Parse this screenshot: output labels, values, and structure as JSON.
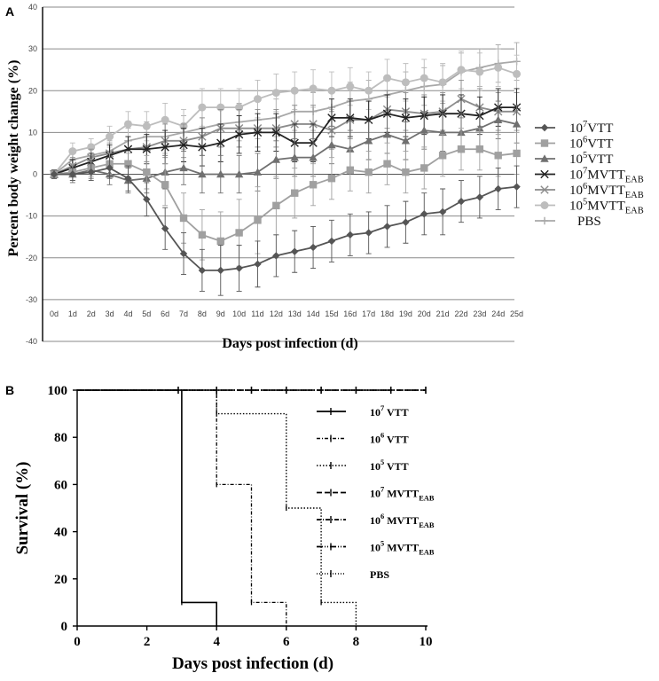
{
  "chart_data": [
    {
      "panel": "A",
      "type": "line",
      "xlabel": "Days post infection (d)",
      "ylabel": "Percent body weight change (%)",
      "ylim": [
        -40,
        40
      ],
      "yticks": [
        -40,
        -30,
        -20,
        -10,
        0,
        10,
        20,
        30,
        40
      ],
      "categories": [
        "0d",
        "1d",
        "2d",
        "3d",
        "4d",
        "5d",
        "6d",
        "7d",
        "8d",
        "9d",
        "10d",
        "11d",
        "12d",
        "13d",
        "14d",
        "15d",
        "16d",
        "17d",
        "18d",
        "19d",
        "20d",
        "21d",
        "22d",
        "23d",
        "24d",
        "25d"
      ],
      "series": [
        {
          "name": "10⁷VTT",
          "base": "10",
          "exp": "7",
          "main": "VTT",
          "sub": "",
          "color": "#555555",
          "marker": "diamond",
          "values": [
            0,
            0,
            0.5,
            1.5,
            -1,
            -6,
            -13,
            -19,
            -23,
            -23,
            -22.5,
            -21.5,
            -19.5,
            -18.5,
            -17.5,
            -16,
            -14.5,
            -14,
            -12.5,
            -11.5,
            -9.5,
            -9,
            -6.5,
            -5.5,
            -3.5,
            -3
          ],
          "err": [
            1,
            1.5,
            2,
            2.5,
            3,
            4,
            5,
            5,
            5,
            6,
            5.5,
            5.5,
            5,
            5,
            5,
            5,
            5,
            5,
            5,
            5,
            5,
            5.5,
            5,
            5,
            5,
            5
          ]
        },
        {
          "name": "10⁶VTT",
          "base": "10",
          "exp": "6",
          "main": "VTT",
          "sub": "",
          "color": "#a0a0a0",
          "marker": "square",
          "values": [
            0,
            0.5,
            1.5,
            2.5,
            2.5,
            0.5,
            -2.5,
            -10.5,
            -14.5,
            -16,
            -14,
            -11,
            -7.5,
            -4.5,
            -2.5,
            -1,
            1,
            0.5,
            2.5,
            0.5,
            1.5,
            4.5,
            6,
            6,
            4.5,
            5
          ],
          "err": [
            1,
            2,
            2,
            2.5,
            3,
            4,
            5,
            6,
            6,
            7,
            8,
            8,
            7,
            6,
            5,
            5,
            5,
            5,
            5,
            5,
            5,
            5,
            5,
            5,
            5,
            5
          ]
        },
        {
          "name": "10⁵VTT",
          "base": "10",
          "exp": "5",
          "main": "VTT",
          "sub": "",
          "color": "#707070",
          "marker": "triangle",
          "values": [
            0,
            0,
            1,
            0,
            -1.5,
            -1,
            0.5,
            1.5,
            0,
            0,
            0,
            0.5,
            3.5,
            4,
            4,
            7,
            6,
            8,
            9.5,
            8,
            10.5,
            10,
            10,
            11,
            13,
            12
          ],
          "err": [
            1,
            2,
            2,
            2.5,
            3,
            3.5,
            4,
            4,
            4.5,
            4.5,
            4.5,
            4.5,
            4.5,
            4.5,
            4.5,
            4.5,
            4.5,
            4.5,
            4.5,
            4.5,
            4.5,
            4.5,
            4.5,
            4.5,
            4.5,
            4.5
          ]
        },
        {
          "name": "10⁷MVTTEAB",
          "base": "10",
          "exp": "7",
          "main": "MVTT",
          "sub": "EAB",
          "color": "#222222",
          "marker": "x",
          "values": [
            0,
            1.5,
            3,
            4.5,
            6,
            6,
            6.5,
            7,
            6.5,
            7.5,
            9.5,
            10,
            10,
            7.5,
            7.5,
            13.5,
            13.5,
            13,
            14.5,
            13.5,
            14,
            14.5,
            14.5,
            14,
            16,
            16
          ],
          "err": [
            1,
            2,
            2,
            2.5,
            3,
            3.5,
            4,
            4,
            4.5,
            4.5,
            4.5,
            4.5,
            4.5,
            4.5,
            4.5,
            4.5,
            4.5,
            4.5,
            4.5,
            4.5,
            4.5,
            4.5,
            4.5,
            4.5,
            4.5,
            4.5
          ]
        },
        {
          "name": "10⁶MVTTEAB",
          "base": "10",
          "exp": "6",
          "main": "MVTT",
          "sub": "EAB",
          "color": "#8c8c8c",
          "marker": "x",
          "values": [
            0,
            2,
            4,
            5,
            6,
            6.5,
            8,
            8,
            9,
            11,
            11,
            11,
            11,
            12,
            12,
            10.5,
            13,
            13,
            15.5,
            15,
            14.5,
            15,
            18,
            16,
            15,
            15
          ],
          "err": [
            1,
            2,
            2,
            2.5,
            3,
            3.5,
            4,
            4,
            4.5,
            4.5,
            4.5,
            4.5,
            4.5,
            4.5,
            4.5,
            4.5,
            4.5,
            4.5,
            4.5,
            4.5,
            4.5,
            4.5,
            4.5,
            4.5,
            4.5,
            4.5
          ]
        },
        {
          "name": "10⁵MVTTEAB",
          "base": "10",
          "exp": "5",
          "main": "MVTT",
          "sub": "EAB",
          "color": "#bdbdbd",
          "marker": "circle",
          "values": [
            0,
            5.5,
            6.5,
            9,
            12,
            11.5,
            13,
            11.5,
            16,
            16,
            16,
            18,
            19.5,
            20,
            20.5,
            20,
            21,
            20,
            23,
            22,
            23,
            22,
            25,
            24.5,
            25.5,
            24
          ],
          "err": [
            1,
            2,
            2,
            2.5,
            3,
            3.5,
            4,
            4,
            4.5,
            4.5,
            4.5,
            4.5,
            4.5,
            4.5,
            4.5,
            4.5,
            4.5,
            4.5,
            4.5,
            4.5,
            4.5,
            4.5,
            4.5,
            4.5,
            4.5,
            4.5
          ]
        },
        {
          "name": "PBS",
          "base": "",
          "exp": "",
          "main": "PBS",
          "sub": "",
          "color": "#a8a8a8",
          "marker": "plus",
          "values": [
            0,
            3.5,
            4.5,
            5.5,
            8,
            9,
            9,
            10,
            11,
            12,
            12.5,
            13,
            13.5,
            15,
            15,
            16,
            17.5,
            18,
            19,
            20,
            21,
            21.5,
            24.5,
            25.5,
            26.5,
            27
          ],
          "err": [
            1,
            2,
            2,
            2.5,
            3,
            3.5,
            4,
            4,
            4.5,
            4.5,
            4.5,
            4.5,
            4.5,
            4.5,
            4.5,
            4.5,
            4.5,
            4.5,
            4.5,
            4.5,
            4.5,
            4.5,
            4.5,
            4.5,
            4.5,
            4.5
          ]
        }
      ]
    },
    {
      "panel": "B",
      "type": "line",
      "style": "survival-step",
      "xlabel": "Days post infection (d)",
      "ylabel": "Survival (%)",
      "xlim": [
        0,
        10
      ],
      "ylim": [
        0,
        100
      ],
      "xticks": [
        0,
        2,
        4,
        6,
        8,
        10
      ],
      "yticks": [
        0,
        20,
        40,
        60,
        80,
        100
      ],
      "series": [
        {
          "name": "10⁷ VTT",
          "base": "10",
          "exp": "7",
          "main": " VTT",
          "sub": "",
          "dash": "",
          "width": 1.6,
          "points": [
            [
              0,
              100
            ],
            [
              3,
              100
            ],
            [
              3,
              10
            ],
            [
              4,
              10
            ],
            [
              4,
              0
            ]
          ]
        },
        {
          "name": "10⁶ VTT",
          "base": "10",
          "exp": "6",
          "main": " VTT",
          "sub": "",
          "dash": "4,2,1,2",
          "width": 1.3,
          "points": [
            [
              0,
              100
            ],
            [
              4,
              100
            ],
            [
              4,
              60
            ],
            [
              5,
              60
            ],
            [
              5,
              10
            ],
            [
              6,
              10
            ],
            [
              6,
              0
            ]
          ]
        },
        {
          "name": "10⁵ VTT",
          "base": "10",
          "exp": "5",
          "main": " VTT",
          "sub": "",
          "dash": "1.5,2",
          "width": 1.4,
          "points": [
            [
              0,
              100
            ],
            [
              4,
              100
            ],
            [
              4,
              90
            ],
            [
              6,
              90
            ],
            [
              6,
              50
            ],
            [
              7,
              50
            ],
            [
              7,
              10
            ],
            [
              8,
              10
            ],
            [
              8,
              0
            ]
          ]
        },
        {
          "name": "10⁷ MVTTEAB",
          "base": "10",
          "exp": "7",
          "main": " MVTT",
          "sub": "EAB",
          "dash": "6,3",
          "width": 1.6,
          "points": [
            [
              0,
              100
            ],
            [
              10,
              100
            ]
          ]
        },
        {
          "name": "10⁶ MVTTEAB",
          "base": "10",
          "exp": "6",
          "main": " MVTT",
          "sub": "EAB",
          "dash": "5,2,1,2",
          "width": 1.6,
          "points": [
            [
              0,
              100
            ],
            [
              10,
              100
            ]
          ]
        },
        {
          "name": "10⁵ MVTTEAB",
          "base": "10",
          "exp": "5",
          "main": " MVTT",
          "sub": "EAB",
          "dash": "7,2,1,2,1,2",
          "width": 1.6,
          "points": [
            [
              0,
              100
            ],
            [
              10,
              100
            ]
          ]
        },
        {
          "name": "PBS",
          "base": "",
          "exp": "",
          "main": "PBS",
          "sub": "",
          "dash": "1,2",
          "width": 1.4,
          "points": [
            [
              0,
              100
            ],
            [
              10,
              100
            ]
          ]
        }
      ],
      "censor_x": [
        2.9,
        4,
        5,
        6,
        7,
        8,
        9,
        10
      ]
    }
  ]
}
